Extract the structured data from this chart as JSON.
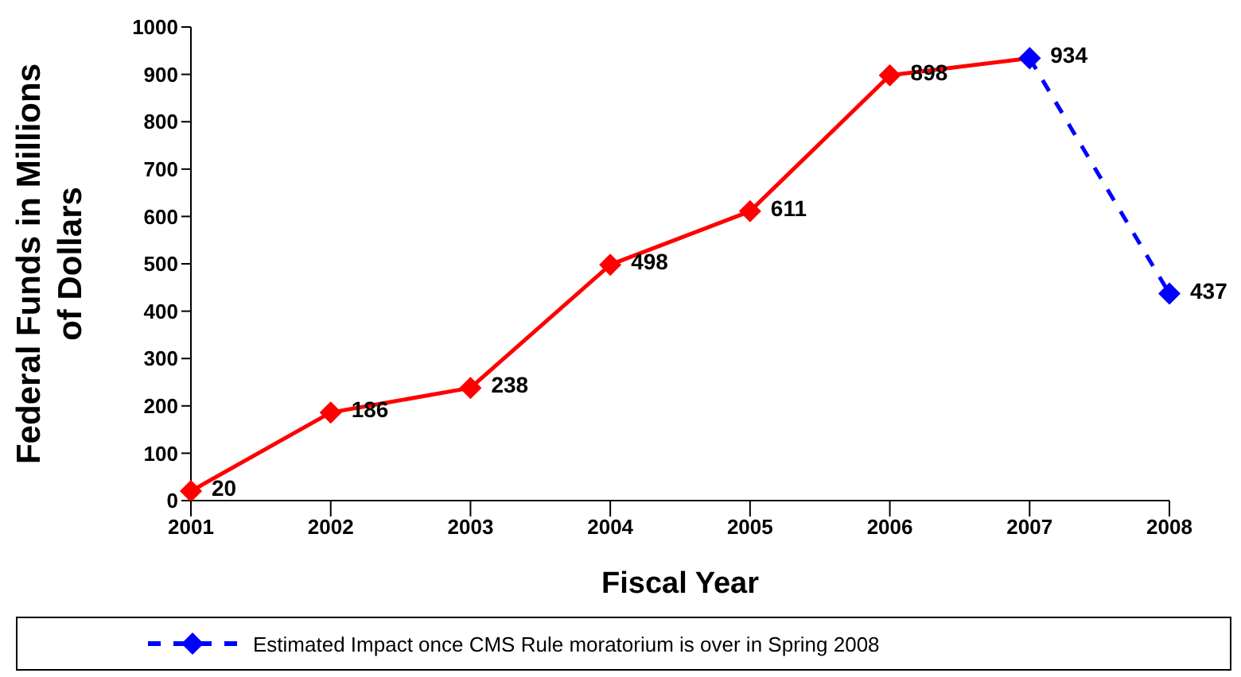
{
  "chart_data": {
    "type": "line",
    "xlabel": "Fiscal Year",
    "ylabel": "Federal Funds in Millions of Dollars",
    "categories": [
      "2001",
      "2002",
      "2003",
      "2004",
      "2005",
      "2006",
      "2007",
      "2008"
    ],
    "series": [
      {
        "color": "#ff0000",
        "line_style": "solid",
        "values": [
          20,
          186,
          238,
          498,
          611,
          898,
          934,
          null
        ],
        "value_labels": [
          "20",
          "186",
          "238",
          "498",
          "611",
          "898",
          "934",
          null
        ]
      },
      {
        "name": "Estimated Impact once CMS Rule moratorium is over in Spring 2008",
        "color": "#0000ff",
        "line_style": "dashed",
        "values": [
          null,
          null,
          null,
          null,
          null,
          null,
          934,
          437
        ],
        "value_labels": [
          null,
          null,
          null,
          null,
          null,
          null,
          null,
          "437"
        ]
      }
    ],
    "ylim": [
      0,
      1000
    ],
    "yticks": [
      0,
      100,
      200,
      300,
      400,
      500,
      600,
      700,
      800,
      900,
      1000
    ],
    "marker": "diamond",
    "grid": false,
    "legend": "bottom"
  }
}
